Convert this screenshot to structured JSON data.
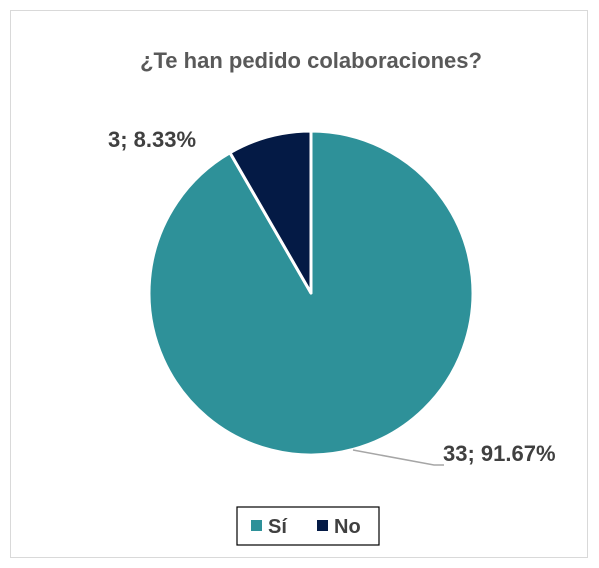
{
  "chart_data": {
    "type": "pie",
    "title": "¿Te han pedido colaboraciones?",
    "categories": [
      "Sí",
      "No"
    ],
    "values": [
      33,
      3
    ],
    "percent_labels": [
      "91.67%",
      "8.33%"
    ],
    "data_labels": [
      "33; 91.67%",
      "3; 8.33%"
    ],
    "colors": [
      "#2e9199",
      "#041a45"
    ],
    "legend_placement": "bottom"
  }
}
